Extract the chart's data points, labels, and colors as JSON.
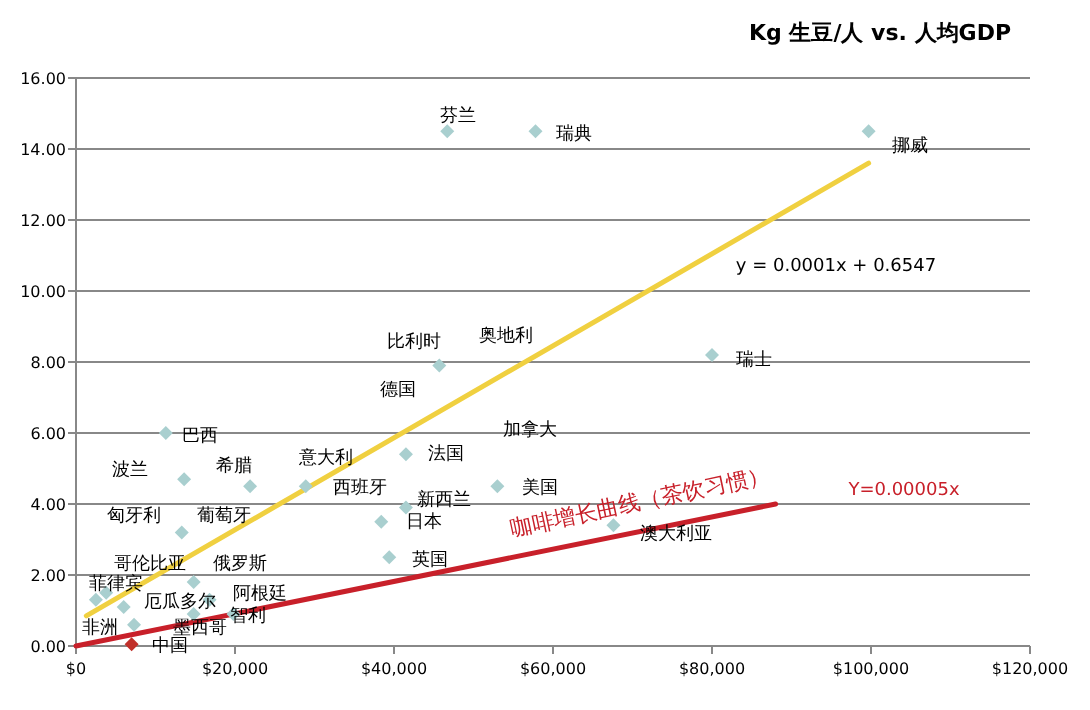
{
  "chart_data": {
    "type": "scatter",
    "title": "Kg 生豆/人 vs. 人均GDP",
    "xlim": [
      0,
      120000
    ],
    "ylim": [
      0,
      16
    ],
    "xticks": [
      {
        "value": 0,
        "label": "$0"
      },
      {
        "value": 20000,
        "label": "$20,000"
      },
      {
        "value": 40000,
        "label": "$40,000"
      },
      {
        "value": 60000,
        "label": "$60,000"
      },
      {
        "value": 80000,
        "label": "$80,000"
      },
      {
        "value": 100000,
        "label": "$100,000"
      },
      {
        "value": 120000,
        "label": "$120,000"
      }
    ],
    "yticks": [
      {
        "value": 0,
        "label": "0.00"
      },
      {
        "value": 2,
        "label": "2.00"
      },
      {
        "value": 4,
        "label": "4.00"
      },
      {
        "value": 6,
        "label": "6.00"
      },
      {
        "value": 8,
        "label": "8.00"
      },
      {
        "value": 10,
        "label": "10.00"
      },
      {
        "value": 12,
        "label": "12.00"
      },
      {
        "value": 14,
        "label": "14.00"
      },
      {
        "value": 16,
        "label": "16.00"
      }
    ],
    "grid": "y",
    "series": [
      {
        "marker": "diamond",
        "color": "#a9cfcf",
        "x": [
          46700,
          57800,
          99700,
          13600,
          21900,
          13300,
          14800,
          28900,
          41500,
          41500,
          38400,
          39400,
          53000,
          67600,
          2500,
          3800,
          6000,
          7300,
          14800,
          19800,
          11300,
          80000,
          45700,
          16800
        ],
        "values": [
          14.5,
          14.5,
          14.5,
          4.7,
          4.5,
          3.2,
          1.8,
          4.5,
          5.4,
          3.9,
          3.5,
          2.5,
          4.5,
          3.4,
          1.3,
          1.5,
          1.1,
          0.6,
          0.9,
          0.9,
          6.0,
          8.2,
          7.9,
          1.3
        ]
      },
      {
        "marker": "diamond",
        "color": "#c0302a",
        "x": [
          7000
        ],
        "values": [
          0.05
        ]
      },
      {
        "type": "line",
        "color": "#f0d040",
        "x": [
          1300,
          99700
        ],
        "values": [
          0.85,
          13.6
        ]
      },
      {
        "type": "line",
        "color": "#c8202a",
        "x": [
          0,
          88000
        ],
        "values": [
          0,
          4.0
        ]
      }
    ],
    "annotations": [
      "芬兰",
      "瑞典",
      "挪威",
      "比利时",
      "奥地利",
      "瑞士",
      "德国",
      "加拿大",
      "巴西",
      "波兰",
      "希腊",
      "意大利",
      "西班牙",
      "法国",
      "新西兰",
      "日本",
      "英国",
      "美国",
      "澳大利亚",
      "匈牙利",
      "葡萄牙",
      "哥伦比亚",
      "俄罗斯",
      "菲律宾",
      "厄瓜多尔",
      "阿根廷",
      "智利",
      "墨西哥",
      "非洲",
      "中国",
      "y = 0.0001x + 0.6547",
      "咖啡增长曲线（茶饮习惯）",
      "Y=0.00005x"
    ]
  }
}
